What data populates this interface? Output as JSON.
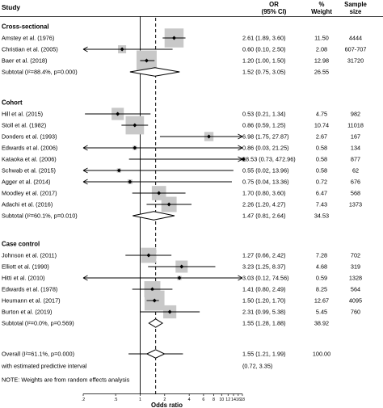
{
  "chart_data": {
    "type": "forest",
    "headers": {
      "study": "Study",
      "or": [
        "OR",
        "(95% CI)"
      ],
      "weight": [
        "%",
        "Weight"
      ],
      "n": [
        "Sample",
        "size"
      ]
    },
    "groups": [
      {
        "name": "Cross-sectional",
        "studies": [
          {
            "label": "Amstey et al. (1976)",
            "or": 2.61,
            "lo": 1.89,
            "hi": 3.6,
            "ci_text": "2.61 (1.89, 3.60)",
            "weight": 11.5,
            "weight_text": "11.50",
            "n": "4444"
          },
          {
            "label": "Christian et al. (2005)",
            "or": 0.6,
            "lo": 0.1,
            "hi": 2.5,
            "ci_text": "0.60 (0.10, 2.50)",
            "weight": 2.08,
            "weight_text": "2.08",
            "n": "607-707"
          },
          {
            "label": "Baer et al. (2018)",
            "or": 1.2,
            "lo": 1.0,
            "hi": 1.5,
            "ci_text": "1.20 (1.00, 1.50)",
            "weight": 12.98,
            "weight_text": "12.98",
            "n": "31720"
          }
        ],
        "subtotal": {
          "label": "Subtotal  (I²=88.4%, p=0.000)",
          "or": 1.52,
          "lo": 0.75,
          "hi": 3.05,
          "ci_text": "1.52 (0.75, 3.05)",
          "weight_text": "26.55"
        }
      },
      {
        "name": "Cohort",
        "studies": [
          {
            "label": "Hill et al. (2015)",
            "or": 0.53,
            "lo": 0.21,
            "hi": 1.34,
            "ci_text": "0.53 (0.21, 1.34)",
            "weight": 4.75,
            "weight_text": "4.75",
            "n": "982"
          },
          {
            "label": "Stoll et al. (1982)",
            "or": 0.86,
            "lo": 0.59,
            "hi": 1.25,
            "ci_text": "0.86 (0.59, 1.25)",
            "weight": 10.74,
            "weight_text": "10.74",
            "n": "11018"
          },
          {
            "label": "Donders et al. (1993)",
            "or": 6.98,
            "lo": 1.75,
            "hi": 27.87,
            "ci_text": "6.98 (1.75, 27.87)",
            "weight": 2.67,
            "weight_text": "2.67",
            "n": "167"
          },
          {
            "label": "Edwards et al. (2006)",
            "or": 0.86,
            "lo": 0.03,
            "hi": 21.25,
            "ci_text": "0.86 (0.03, 21.25)",
            "weight": 0.58,
            "weight_text": "0.58",
            "n": "134"
          },
          {
            "label": "Kataoka et al. (2006)",
            "or": 18.53,
            "lo": 0.73,
            "hi": 472.96,
            "ci_text": "18.53 (0.73, 472.96)",
            "weight": 0.58,
            "weight_text": "0.58",
            "n": "877"
          },
          {
            "label": "Schwab et al. (2015)",
            "or": 0.55,
            "lo": 0.02,
            "hi": 13.96,
            "ci_text": "0.55 (0.02, 13.96)",
            "weight": 0.58,
            "weight_text": "0.58",
            "n": "62"
          },
          {
            "label": "Agger et al. (2014)",
            "or": 0.75,
            "lo": 0.04,
            "hi": 13.36,
            "ci_text": "0.75 (0.04, 13.36)",
            "weight": 0.72,
            "weight_text": "0.72",
            "n": "676"
          },
          {
            "label": "Moodley et al. (2017)",
            "or": 1.7,
            "lo": 0.8,
            "hi": 3.6,
            "ci_text": "1.70 (0.80, 3.60)",
            "weight": 6.47,
            "weight_text": "6.47",
            "n": "568"
          },
          {
            "label": "Adachi et al. (2016)",
            "or": 2.26,
            "lo": 1.2,
            "hi": 4.27,
            "ci_text": "2.26 (1.20, 4.27)",
            "weight": 7.43,
            "weight_text": "7.43",
            "n": "1373"
          }
        ],
        "subtotal": {
          "label": "Subtotal  (I²=60.1%, p=0.010)",
          "or": 1.47,
          "lo": 0.81,
          "hi": 2.64,
          "ci_text": "1.47 (0.81, 2.64)",
          "weight_text": "34.53"
        }
      },
      {
        "name": "Case control",
        "studies": [
          {
            "label": "Johnson et al. (2011)",
            "or": 1.27,
            "lo": 0.66,
            "hi": 2.42,
            "ci_text": "1.27 (0.66, 2.42)",
            "weight": 7.28,
            "weight_text": "7.28",
            "n": "702"
          },
          {
            "label": "Elliott et al. (1990)",
            "or": 3.23,
            "lo": 1.25,
            "hi": 8.37,
            "ci_text": "3.23 (1.25, 8.37)",
            "weight": 4.68,
            "weight_text": "4.68",
            "n": "319"
          },
          {
            "label": "Hitti et al. (2010)",
            "or": 3.03,
            "lo": 0.12,
            "hi": 74.56,
            "ci_text": "3.03 (0.12, 74.56)",
            "weight": 0.59,
            "weight_text": "0.59",
            "n": "1328"
          },
          {
            "label": "Edwards et al. (1978)",
            "or": 1.41,
            "lo": 0.8,
            "hi": 2.49,
            "ci_text": "1.41 (0.80, 2.49)",
            "weight": 8.25,
            "weight_text": "8.25",
            "n": "564"
          },
          {
            "label": "Heumann et al. (2017)",
            "or": 1.5,
            "lo": 1.2,
            "hi": 1.7,
            "ci_text": "1.50 (1.20, 1.70)",
            "weight": 12.67,
            "weight_text": "12.67",
            "n": "4095"
          },
          {
            "label": "Burton et al. (2019)",
            "or": 2.31,
            "lo": 0.99,
            "hi": 5.38,
            "ci_text": "2.31 (0.99, 5.38)",
            "weight": 5.45,
            "weight_text": "5.45",
            "n": "760"
          }
        ],
        "subtotal": {
          "label": "Subtotal  (I²=0.0%, p=0.569)",
          "or": 1.55,
          "lo": 1.28,
          "hi": 1.88,
          "ci_text": "1.55 (1.28, 1.88)",
          "weight_text": "38.92"
        }
      }
    ],
    "overall": {
      "label": "Overall  (I²=61.1%, p=0.000)",
      "or": 1.55,
      "lo": 1.21,
      "hi": 1.99,
      "ci_text": "1.55 (1.21, 1.99)",
      "weight_text": "100.00"
    },
    "prediction": {
      "label": "with estimated predictive interval",
      "lo": 0.72,
      "hi": 3.35,
      "ci_text": "(0.72, 3.35)"
    },
    "note": "NOTE: Weights are from random effects analysis",
    "x_axis": {
      "scale": "log",
      "label": "Odds ratio",
      "ticks": [
        0.2,
        0.5,
        1,
        2,
        4,
        6,
        8,
        10,
        12,
        14,
        16,
        18
      ],
      "tick_labels": [
        ".2",
        ".5",
        "1",
        "2",
        "4",
        "6",
        "8",
        "10",
        "12",
        "14",
        "16",
        "18"
      ],
      "range": [
        0.2,
        18
      ],
      "null_line": 1
    },
    "colors": {
      "square": "#c8c8c8",
      "line": "#000000",
      "diamond": "#000000"
    }
  }
}
